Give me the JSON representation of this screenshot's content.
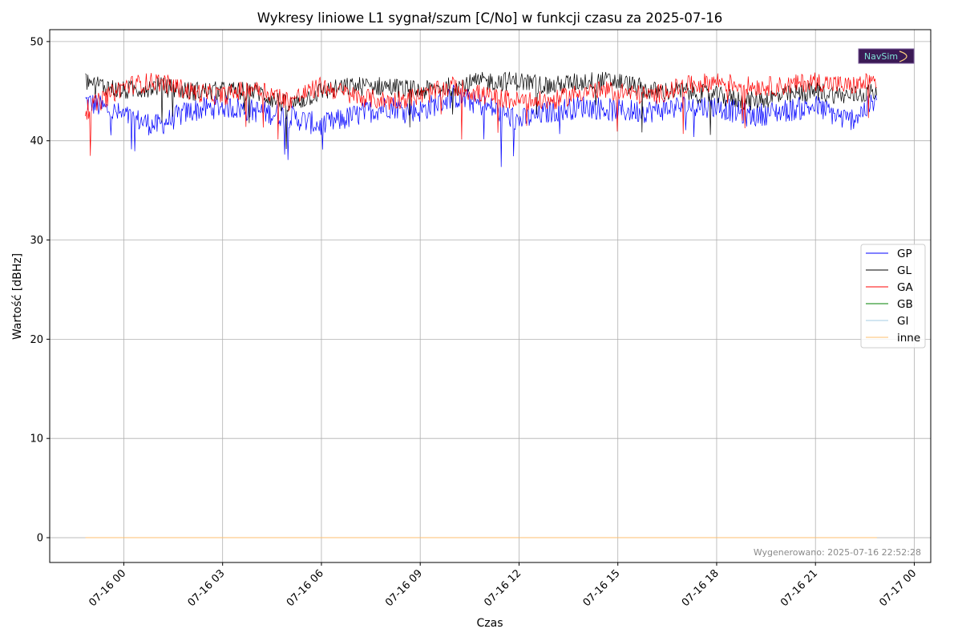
{
  "chart_data": {
    "type": "line",
    "title": "Wykresy liniowe L1 sygnał/szum [C/No] w funkcji czasu za 2025-07-16",
    "xlabel": "Czas",
    "ylabel": "Wartość [dBHz]",
    "x_ticks": [
      "07-16 00",
      "07-16 03",
      "07-16 06",
      "07-16 09",
      "07-16 12",
      "07-16 15",
      "07-16 18",
      "07-16 21",
      "07-17 00"
    ],
    "x_range": [
      "2025-07-15 21:45",
      "2025-07-17 00:30"
    ],
    "data_x_range": [
      "2025-07-15 22:50",
      "2025-07-16 22:52"
    ],
    "ylim": [
      -2.5,
      51.2
    ],
    "y_ticks": [
      0,
      10,
      20,
      30,
      40,
      50
    ],
    "grid": true,
    "legend_position": "center-right",
    "series": [
      {
        "name": "GP",
        "color": "#0000ff",
        "x": [
          "22:50",
          "00:00",
          "01:00",
          "02:00",
          "03:00",
          "04:00",
          "05:00",
          "06:00",
          "07:00",
          "08:00",
          "09:00",
          "10:00",
          "11:00",
          "12:00",
          "13:00",
          "14:00",
          "15:00",
          "16:00",
          "17:00",
          "18:00",
          "19:00",
          "20:00",
          "21:00",
          "22:00",
          "22:52"
        ],
        "values": [
          44.0,
          42.5,
          41.5,
          43.0,
          43.5,
          43.0,
          42.5,
          41.5,
          42.5,
          43.5,
          43.0,
          44.5,
          43.5,
          42.0,
          43.0,
          43.5,
          43.0,
          43.0,
          43.5,
          43.5,
          42.5,
          43.0,
          43.5,
          42.0,
          44.0
        ]
      },
      {
        "name": "GL",
        "color": "#000000",
        "x": [
          "22:50",
          "00:00",
          "01:00",
          "02:00",
          "03:00",
          "04:00",
          "05:00",
          "06:00",
          "07:00",
          "08:00",
          "09:00",
          "10:00",
          "11:00",
          "12:00",
          "13:00",
          "14:00",
          "15:00",
          "16:00",
          "17:00",
          "18:00",
          "19:00",
          "20:00",
          "21:00",
          "22:00",
          "22:52"
        ],
        "values": [
          46.0,
          45.0,
          45.5,
          45.0,
          45.0,
          45.0,
          43.5,
          45.0,
          45.5,
          45.5,
          45.0,
          45.5,
          46.0,
          46.0,
          45.5,
          46.0,
          46.0,
          45.0,
          45.0,
          44.5,
          44.0,
          44.5,
          45.0,
          44.5,
          45.0
        ]
      },
      {
        "name": "GA",
        "color": "#ff0000",
        "x": [
          "22:50",
          "00:00",
          "01:00",
          "02:00",
          "03:00",
          "04:00",
          "05:00",
          "06:00",
          "07:00",
          "08:00",
          "09:00",
          "10:00",
          "11:00",
          "12:00",
          "13:00",
          "14:00",
          "15:00",
          "16:00",
          "17:00",
          "18:00",
          "19:00",
          "20:00",
          "21:00",
          "22:00",
          "22:52"
        ],
        "values": [
          43.0,
          45.5,
          46.0,
          45.0,
          44.5,
          45.5,
          44.0,
          45.5,
          44.5,
          44.0,
          44.5,
          45.5,
          44.5,
          44.0,
          44.0,
          45.0,
          45.0,
          44.5,
          45.5,
          46.0,
          45.5,
          45.5,
          46.0,
          45.5,
          46.0
        ]
      },
      {
        "name": "GB",
        "color": "#008000",
        "x": [
          "22:50",
          "22:52"
        ],
        "values": [
          0,
          0
        ]
      },
      {
        "name": "GI",
        "color": "#a6cee3",
        "x": [
          "22:50",
          "22:52"
        ],
        "values": [
          0,
          0
        ]
      },
      {
        "name": "inne",
        "color": "#fdbf6f",
        "x": [
          "22:50",
          "22:52"
        ],
        "values": [
          0,
          0
        ]
      }
    ],
    "footer": "Wygenerowano: 2025-07-16 22:52:28",
    "logo_text": "NavSim"
  }
}
